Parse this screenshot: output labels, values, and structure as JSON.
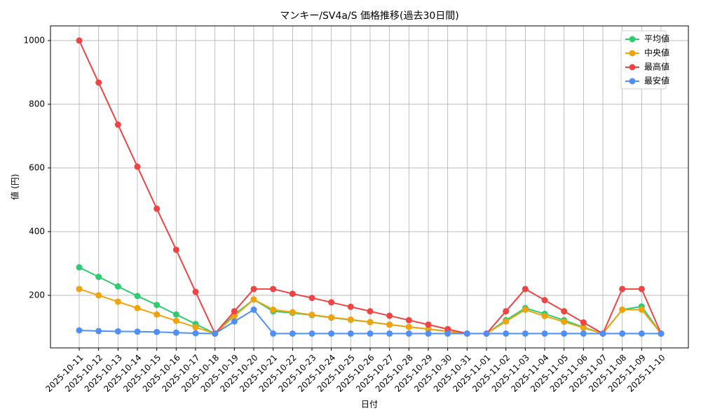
{
  "chart_data": {
    "type": "line",
    "title": "マンキー/SV4a/S 価格推移(過去30日間)",
    "x_label": "日付",
    "y_label": "値 (円)",
    "categories": [
      "2025-10-11",
      "2025-10-12",
      "2025-10-13",
      "2025-10-14",
      "2025-10-15",
      "2025-10-16",
      "2025-10-17",
      "2025-10-18",
      "2025-10-19",
      "2025-10-20",
      "2025-10-21",
      "2025-10-22",
      "2025-10-23",
      "2025-10-24",
      "2025-10-25",
      "2025-10-26",
      "2025-10-27",
      "2025-10-28",
      "2025-10-29",
      "2025-10-30",
      "2025-10-31",
      "2025-11-01",
      "2025-11-02",
      "2025-11-03",
      "2025-11-04",
      "2025-11-05",
      "2025-11-06",
      "2025-11-07",
      "2025-11-08",
      "2025-11-09",
      "2025-11-10"
    ],
    "series": [
      {
        "name": "平均値",
        "color": "#2ecc71",
        "values": [
          288,
          258,
          228,
          198,
          170,
          140,
          110,
          80,
          140,
          187,
          150,
          145,
          138,
          130,
          123,
          116,
          108,
          101,
          94,
          87,
          80,
          80,
          122,
          160,
          142,
          122,
          100,
          80,
          155,
          165,
          80
        ]
      },
      {
        "name": "中央値",
        "color": "#f0a30a",
        "values": [
          220,
          200,
          180,
          160,
          140,
          120,
          100,
          80,
          135,
          187,
          155,
          147,
          139,
          131,
          124,
          116,
          108,
          101,
          94,
          87,
          80,
          80,
          118,
          155,
          135,
          117,
          98,
          80,
          155,
          155,
          80
        ]
      },
      {
        "name": "最高値",
        "color": "#ef4444",
        "values": [
          1000,
          868,
          736,
          604,
          472,
          343,
          211,
          80,
          150,
          220,
          220,
          205,
          192,
          178,
          164,
          150,
          136,
          122,
          108,
          94,
          80,
          80,
          150,
          220,
          185,
          150,
          115,
          80,
          220,
          220,
          80
        ]
      },
      {
        "name": "最安値",
        "color": "#4f8ff7",
        "values": [
          90,
          88,
          87,
          86,
          85,
          83,
          81,
          80,
          118,
          155,
          80,
          80,
          80,
          80,
          80,
          80,
          80,
          80,
          80,
          80,
          80,
          80,
          80,
          80,
          80,
          80,
          80,
          80,
          80,
          80,
          80
        ]
      }
    ],
    "ylim": [
      35,
      1046
    ],
    "yticks": [
      200,
      400,
      600,
      800,
      1000
    ],
    "grid": true,
    "legend": "upper right"
  }
}
